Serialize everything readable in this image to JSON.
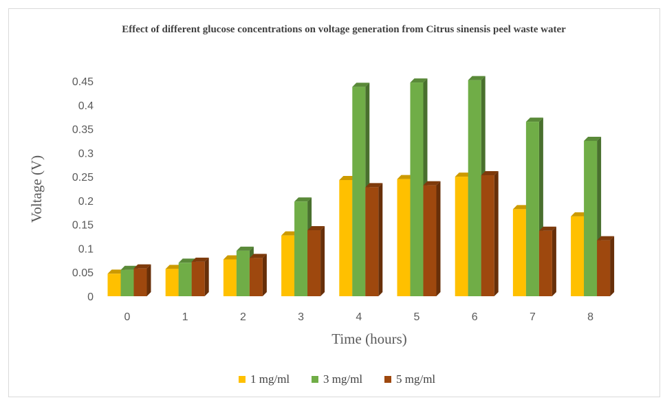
{
  "chart_data": {
    "type": "bar",
    "title": "Effect of different glucose concentrations on voltage generation from Citrus sinensis peel waste water",
    "xlabel": "Time (hours)",
    "ylabel": "Voltage  (V)",
    "categories": [
      "0",
      "1",
      "2",
      "3",
      "4",
      "5",
      "6",
      "7",
      "8"
    ],
    "yticks": [
      "0",
      "0.05",
      "0.1",
      "0.15",
      "0.2",
      "0.25",
      "0.3",
      "0.35",
      "0.4",
      "0.45"
    ],
    "ylim": [
      0,
      0.45
    ],
    "grid": false,
    "legend_position": "bottom",
    "style": "3d-column",
    "series": [
      {
        "name": "1 mg/ml",
        "color": "#FFC000",
        "values": [
          0.047,
          0.057,
          0.077,
          0.127,
          0.243,
          0.245,
          0.25,
          0.182,
          0.167
        ]
      },
      {
        "name": "3 mg/ml",
        "color": "#70AD47",
        "values": [
          0.055,
          0.07,
          0.095,
          0.198,
          0.438,
          0.447,
          0.452,
          0.365,
          0.325
        ]
      },
      {
        "name": "5 mg/ml",
        "color": "#9E480E",
        "values": [
          0.058,
          0.072,
          0.08,
          0.138,
          0.228,
          0.232,
          0.253,
          0.137,
          0.117
        ]
      }
    ]
  }
}
